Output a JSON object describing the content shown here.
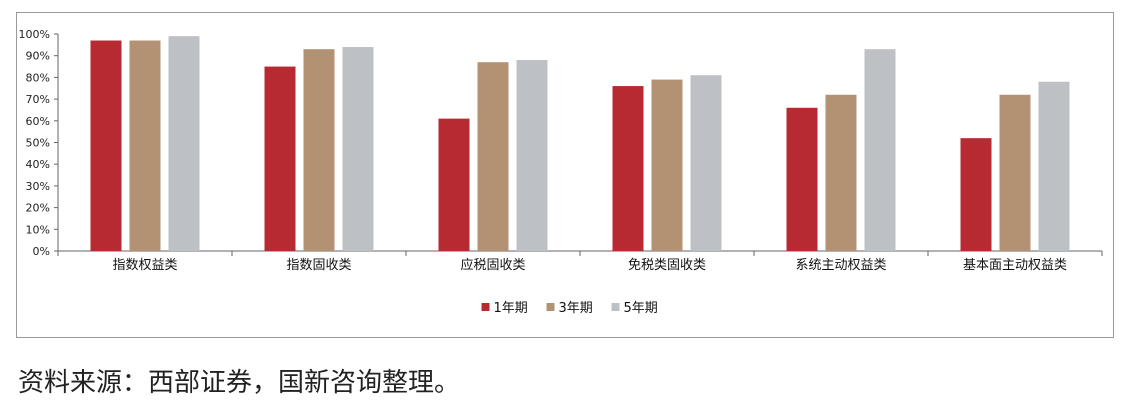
{
  "chart_data": {
    "type": "bar",
    "categories": [
      "指数权益类",
      "指数固收类",
      "应税固收类",
      "免税类固收类",
      "系统主动权益类",
      "基本面主动权益类"
    ],
    "series": [
      {
        "name": "1年期",
        "color": "#b82a31",
        "values": [
          97,
          85,
          61,
          76,
          66,
          52
        ]
      },
      {
        "name": "3年期",
        "color": "#b39274",
        "values": [
          97,
          93,
          87,
          79,
          72,
          72
        ]
      },
      {
        "name": "5年期",
        "color": "#bdc0c4",
        "values": [
          99,
          94,
          88,
          81,
          93,
          78
        ]
      }
    ],
    "ylim": [
      0,
      100
    ],
    "yticks": [
      "0%",
      "10%",
      "20%",
      "30%",
      "40%",
      "50%",
      "60%",
      "70%",
      "80%",
      "90%",
      "100%"
    ],
    "legend_position": "bottom-center",
    "grid": false
  },
  "source_note": "资料来源：西部证券，国新咨询整理。"
}
